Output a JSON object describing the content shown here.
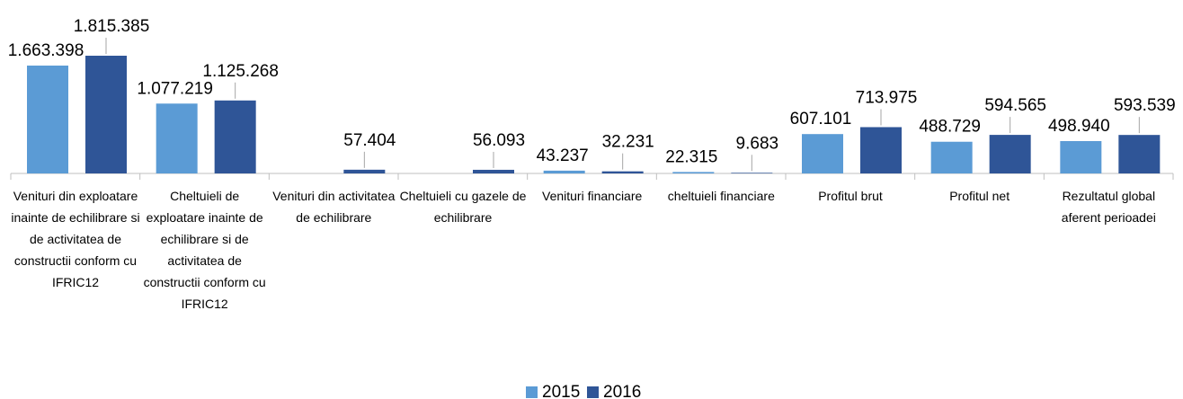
{
  "chart_data": {
    "type": "bar",
    "categories": [
      "Venituri din exploatare inainte de echilibrare si de activitatea de constructii conform cu IFRIC12",
      "Cheltuieli de exploatare inainte de echilibrare si de activitatea de constructii conform cu IFRIC12",
      "Venituri din activitatea de echilibrare",
      "Cheltuieli cu gazele de echilibrare",
      "Venituri financiare",
      "cheltuieli financiare",
      "Profitul brut",
      "Profitul net",
      "Rezultatul global aferent perioadei"
    ],
    "series": [
      {
        "name": "2015",
        "color": "#5b9bd5",
        "values": [
          1663398,
          1077219,
          null,
          null,
          43237,
          22315,
          607101,
          488729,
          498940
        ],
        "value_labels": [
          "1.663.398",
          "1.077.219",
          null,
          null,
          "43.237",
          "22.315",
          "607.101",
          "488.729",
          "498.940"
        ]
      },
      {
        "name": "2016",
        "color": "#2f5597",
        "values": [
          1815385,
          1125268,
          57404,
          56093,
          32231,
          9683,
          713975,
          594565,
          593539
        ],
        "value_labels": [
          "1.815.385",
          "1.125.268",
          "57.404",
          "56.093",
          "32.231",
          "9.683",
          "713.975",
          "594.565",
          "593.539"
        ]
      }
    ],
    "legend": "bottom"
  }
}
